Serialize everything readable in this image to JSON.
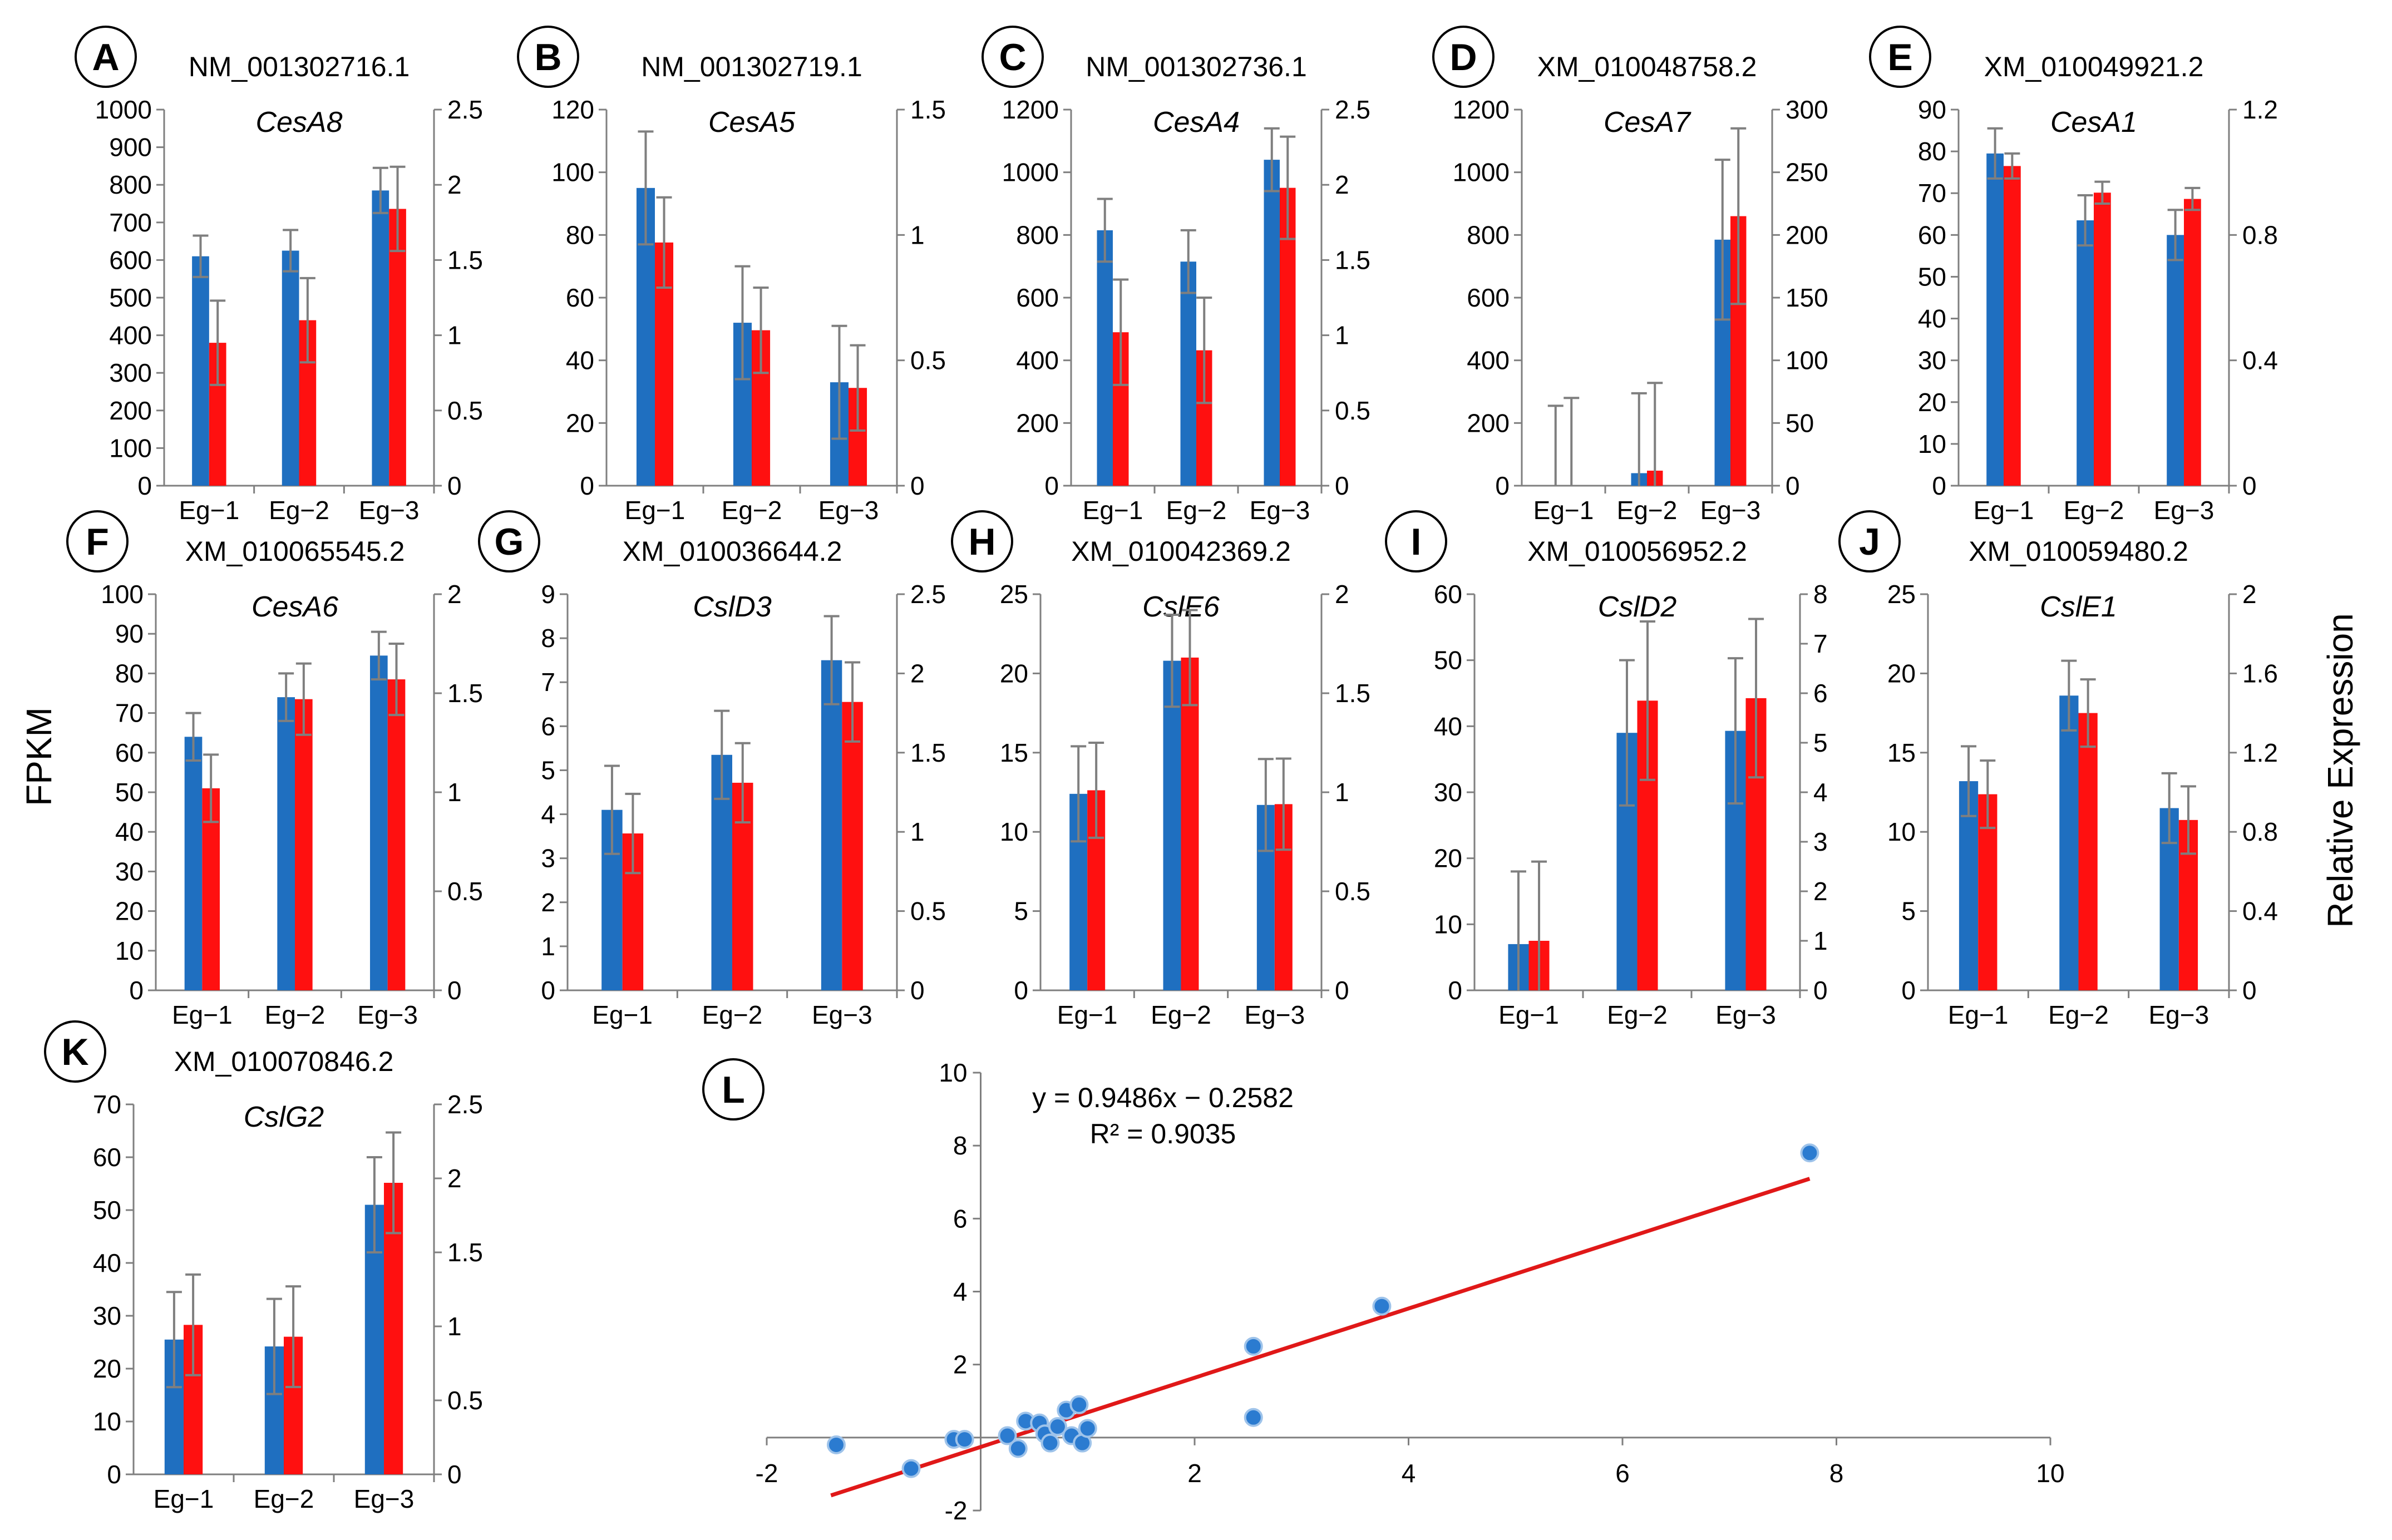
{
  "chart_data": {
    "type": "bar",
    "y_label_left": "FPKM",
    "y_label_right": "Relative Expression",
    "colors": {
      "fpkm": "#1f6fc0",
      "relative": "#ff1010",
      "error": "#7f7f7f",
      "fit": "#e01818",
      "point": "#2b7bd0"
    },
    "panels": [
      {
        "letter": "A",
        "accession": "NM_001302716.1",
        "gene": "CesA8",
        "categories": [
          "Eg−1",
          "Eg−2",
          "Eg−3"
        ],
        "left_ticks": [
          "0",
          "100",
          "200",
          "300",
          "400",
          "500",
          "600",
          "700",
          "800",
          "900",
          "1000"
        ],
        "right_ticks": [
          "0",
          "0.5",
          "1",
          "1.5",
          "2",
          "2.5"
        ],
        "ylim_left": [
          0,
          1000
        ],
        "ylim_right": [
          0,
          2.5
        ],
        "series": [
          {
            "name": "FPKM",
            "axis": "left",
            "values": [
              610,
              625,
              785
            ],
            "errors": [
              55,
              55,
              60
            ]
          },
          {
            "name": "Relative Expression",
            "axis": "right",
            "values": [
              0.95,
              1.1,
              1.84
            ],
            "errors": [
              0.28,
              0.28,
              0.28
            ]
          }
        ]
      },
      {
        "letter": "B",
        "accession": "NM_001302719.1",
        "gene": "CesA5",
        "categories": [
          "Eg−1",
          "Eg−2",
          "Eg−3"
        ],
        "left_ticks": [
          "0",
          "20",
          "40",
          "60",
          "80",
          "100",
          "120"
        ],
        "right_ticks": [
          "0",
          "0.5",
          "1",
          "1.5"
        ],
        "ylim_left": [
          0,
          120
        ],
        "ylim_right": [
          0,
          1.5
        ],
        "series": [
          {
            "name": "FPKM",
            "axis": "left",
            "values": [
              95,
              52,
              33
            ],
            "errors": [
              18,
              18,
              18
            ]
          },
          {
            "name": "Relative Expression",
            "axis": "right",
            "values": [
              0.97,
              0.62,
              0.39
            ],
            "errors": [
              0.18,
              0.17,
              0.17
            ]
          }
        ]
      },
      {
        "letter": "C",
        "accession": "NM_001302736.1",
        "gene": "CesA4",
        "categories": [
          "Eg−1",
          "Eg−2",
          "Eg−3"
        ],
        "left_ticks": [
          "0",
          "200",
          "400",
          "600",
          "800",
          "1000",
          "1200"
        ],
        "right_ticks": [
          "0",
          "0.5",
          "1",
          "1.5",
          "2",
          "2.5"
        ],
        "ylim_left": [
          0,
          1200
        ],
        "ylim_right": [
          0,
          2.5
        ],
        "series": [
          {
            "name": "FPKM",
            "axis": "left",
            "values": [
              815,
              715,
              1040
            ],
            "errors": [
              100,
              100,
              100
            ]
          },
          {
            "name": "Relative Expression",
            "axis": "right",
            "values": [
              1.02,
              0.9,
              1.98
            ],
            "errors": [
              0.35,
              0.35,
              0.34
            ]
          }
        ]
      },
      {
        "letter": "D",
        "accession": "XM_010048758.2",
        "gene": "CesA7",
        "categories": [
          "Eg−1",
          "Eg−2",
          "Eg−3"
        ],
        "left_ticks": [
          "0",
          "200",
          "400",
          "600",
          "800",
          "1000",
          "1200"
        ],
        "right_ticks": [
          "0",
          "50",
          "100",
          "150",
          "200",
          "250",
          "300"
        ],
        "ylim_left": [
          0,
          1200
        ],
        "ylim_right": [
          0,
          300
        ],
        "series": [
          {
            "name": "FPKM",
            "axis": "left",
            "values": [
              0,
              40,
              785
            ],
            "errors": [
              255,
              255,
              255
            ]
          },
          {
            "name": "Relative Expression",
            "axis": "right",
            "values": [
              0,
              12,
              215
            ],
            "errors": [
              70,
              70,
              70
            ]
          }
        ]
      },
      {
        "letter": "E",
        "accession": "XM_010049921.2",
        "gene": "CesA1",
        "categories": [
          "Eg−1",
          "Eg−2",
          "Eg−3"
        ],
        "left_ticks": [
          "0",
          "10",
          "20",
          "30",
          "40",
          "50",
          "60",
          "70",
          "80",
          "90"
        ],
        "right_ticks": [
          "0",
          "0.4",
          "0.8",
          "1.2"
        ],
        "ylim_left": [
          0,
          90
        ],
        "ylim_right": [
          0,
          1.2
        ],
        "series": [
          {
            "name": "FPKM",
            "axis": "left",
            "values": [
              79.5,
              63.5,
              60
            ],
            "errors": [
              6,
              6,
              6
            ]
          },
          {
            "name": "Relative Expression",
            "axis": "right",
            "values": [
              1.02,
              0.935,
              0.915
            ],
            "errors": [
              0.04,
              0.035,
              0.035
            ]
          }
        ]
      },
      {
        "letter": "F",
        "accession": "XM_010065545.2",
        "gene": "CesA6",
        "categories": [
          "Eg−1",
          "Eg−2",
          "Eg−3"
        ],
        "left_ticks": [
          "0",
          "10",
          "20",
          "30",
          "40",
          "50",
          "60",
          "70",
          "80",
          "90",
          "100"
        ],
        "right_ticks": [
          "0",
          "0.5",
          "1",
          "1.5",
          "2"
        ],
        "ylim_left": [
          0,
          100
        ],
        "ylim_right": [
          0,
          2
        ],
        "series": [
          {
            "name": "FPKM",
            "axis": "left",
            "values": [
              64,
              74,
              84.5
            ],
            "errors": [
              6,
              6,
              6
            ]
          },
          {
            "name": "Relative Expression",
            "axis": "right",
            "values": [
              1.02,
              1.47,
              1.57
            ],
            "errors": [
              0.17,
              0.18,
              0.18
            ]
          }
        ]
      },
      {
        "letter": "G",
        "accession": "XM_010036644.2",
        "gene": "CslD3",
        "categories": [
          "Eg−1",
          "Eg−2",
          "Eg−3"
        ],
        "left_ticks": [
          "0",
          "1",
          "2",
          "3",
          "4",
          "5",
          "6",
          "7",
          "8",
          "9"
        ],
        "right_ticks": [
          "0",
          "0.5",
          "1",
          "1.5",
          "2",
          "2.5"
        ],
        "ylim_left": [
          0,
          9
        ],
        "ylim_right": [
          0,
          2.5
        ],
        "series": [
          {
            "name": "FPKM",
            "axis": "left",
            "values": [
              4.1,
              5.35,
              7.5
            ],
            "errors": [
              1.0,
              1.0,
              1.0
            ]
          },
          {
            "name": "Relative Expression",
            "axis": "right",
            "values": [
              0.99,
              1.31,
              1.82
            ],
            "errors": [
              0.25,
              0.25,
              0.25
            ]
          }
        ]
      },
      {
        "letter": "H",
        "accession": "XM_010042369.2",
        "gene": "CslE6",
        "categories": [
          "Eg−1",
          "Eg−2",
          "Eg−3"
        ],
        "left_ticks": [
          "0",
          "5",
          "10",
          "15",
          "20",
          "25"
        ],
        "right_ticks": [
          "0",
          "0.5",
          "1",
          "1.5",
          "2"
        ],
        "ylim_left": [
          0,
          25
        ],
        "ylim_right": [
          0,
          2
        ],
        "series": [
          {
            "name": "FPKM",
            "axis": "left",
            "values": [
              12.4,
              20.8,
              11.7
            ],
            "errors": [
              3.0,
              2.9,
              2.9
            ]
          },
          {
            "name": "Relative Expression",
            "axis": "right",
            "values": [
              1.01,
              1.68,
              0.94
            ],
            "errors": [
              0.24,
              0.24,
              0.23
            ]
          }
        ]
      },
      {
        "letter": "I",
        "accession": "XM_010056952.2",
        "gene": "CslD2",
        "categories": [
          "Eg−1",
          "Eg−2",
          "Eg−3"
        ],
        "left_ticks": [
          "0",
          "10",
          "20",
          "30",
          "40",
          "50",
          "60"
        ],
        "right_ticks": [
          "0",
          "1",
          "2",
          "3",
          "4",
          "5",
          "6",
          "7",
          "8"
        ],
        "ylim_left": [
          0,
          60
        ],
        "ylim_right": [
          0,
          8
        ],
        "series": [
          {
            "name": "FPKM",
            "axis": "left",
            "values": [
              7,
              39,
              39.3
            ],
            "errors": [
              11,
              11,
              11
            ]
          },
          {
            "name": "Relative Expression",
            "axis": "right",
            "values": [
              1.0,
              5.85,
              5.9
            ],
            "errors": [
              1.6,
              1.6,
              1.6
            ]
          }
        ]
      },
      {
        "letter": "J",
        "accession": "XM_010059480.2",
        "gene": "CslE1",
        "categories": [
          "Eg−1",
          "Eg−2",
          "Eg−3"
        ],
        "left_ticks": [
          "0",
          "5",
          "10",
          "15",
          "20",
          "25"
        ],
        "right_ticks": [
          "0",
          "0.4",
          "0.8",
          "1.2",
          "1.6",
          "2"
        ],
        "ylim_left": [
          0,
          25
        ],
        "ylim_right": [
          0,
          2
        ],
        "series": [
          {
            "name": "FPKM",
            "axis": "left",
            "values": [
              13.2,
              18.6,
              11.5
            ],
            "errors": [
              2.2,
              2.2,
              2.2
            ]
          },
          {
            "name": "Relative Expression",
            "axis": "right",
            "values": [
              0.99,
              1.4,
              0.86
            ],
            "errors": [
              0.17,
              0.17,
              0.17
            ]
          }
        ]
      },
      {
        "letter": "K",
        "accession": "XM_010070846.2",
        "gene": "CslG2",
        "categories": [
          "Eg−1",
          "Eg−2",
          "Eg−3"
        ],
        "left_ticks": [
          "0",
          "10",
          "20",
          "30",
          "40",
          "50",
          "60",
          "70"
        ],
        "right_ticks": [
          "0",
          "0.5",
          "1",
          "1.5",
          "2",
          "2.5"
        ],
        "ylim_left": [
          0,
          70
        ],
        "ylim_right": [
          0,
          2.5
        ],
        "series": [
          {
            "name": "FPKM",
            "axis": "left",
            "values": [
              25.5,
              24.2,
              51
            ],
            "errors": [
              9,
              9,
              9
            ]
          },
          {
            "name": "Relative Expression",
            "axis": "right",
            "values": [
              1.01,
              0.93,
              1.97
            ],
            "errors": [
              0.34,
              0.34,
              0.34
            ]
          }
        ]
      }
    ],
    "scatter": {
      "letter": "L",
      "type": "scatter",
      "equation": "y = 0.9486x − 0.2582",
      "r2": "R² = 0.9035",
      "slope": 0.9486,
      "intercept": -0.2582,
      "xlim": [
        -2,
        10
      ],
      "ylim": [
        -2,
        10
      ],
      "x_ticks": [
        "-2",
        "2",
        "4",
        "6",
        "8",
        "10"
      ],
      "y_ticks": [
        "-2",
        "2",
        "4",
        "6",
        "8",
        "10"
      ],
      "fit_range": [
        -1.4,
        7.75
      ],
      "points": [
        {
          "x": -1.35,
          "y": -0.2
        },
        {
          "x": -0.65,
          "y": -0.85
        },
        {
          "x": -0.25,
          "y": -0.05
        },
        {
          "x": -0.15,
          "y": -0.05
        },
        {
          "x": 0.25,
          "y": 0.05
        },
        {
          "x": 0.35,
          "y": -0.3
        },
        {
          "x": 0.42,
          "y": 0.45
        },
        {
          "x": 0.55,
          "y": 0.4
        },
        {
          "x": 0.6,
          "y": 0.1
        },
        {
          "x": 0.65,
          "y": -0.15
        },
        {
          "x": 0.72,
          "y": 0.3
        },
        {
          "x": 0.8,
          "y": 0.75
        },
        {
          "x": 0.85,
          "y": 0.05
        },
        {
          "x": 0.92,
          "y": 0.9
        },
        {
          "x": 0.95,
          "y": -0.15
        },
        {
          "x": 1.0,
          "y": 0.25
        },
        {
          "x": 2.55,
          "y": 2.5
        },
        {
          "x": 2.55,
          "y": 0.55
        },
        {
          "x": 3.75,
          "y": 3.6
        },
        {
          "x": 7.75,
          "y": 7.8
        }
      ]
    }
  }
}
